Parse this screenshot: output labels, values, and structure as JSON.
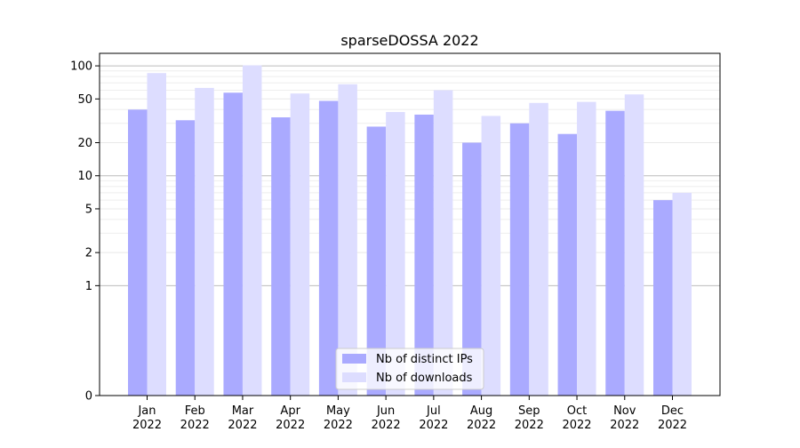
{
  "chart_data": {
    "type": "bar",
    "title": "sparseDOSSA 2022",
    "xlabel": "",
    "ylabel": "",
    "y_scale": "symlog",
    "ylim": [
      0,
      130
    ],
    "y_ticks": [
      0,
      1,
      2,
      5,
      10,
      20,
      50,
      100
    ],
    "y_tick_labels": [
      "0",
      "1",
      "2",
      "5",
      "10",
      "20",
      "50",
      "100"
    ],
    "categories": [
      {
        "month": "Jan",
        "year": "2022"
      },
      {
        "month": "Feb",
        "year": "2022"
      },
      {
        "month": "Mar",
        "year": "2022"
      },
      {
        "month": "Apr",
        "year": "2022"
      },
      {
        "month": "May",
        "year": "2022"
      },
      {
        "month": "Jun",
        "year": "2022"
      },
      {
        "month": "Jul",
        "year": "2022"
      },
      {
        "month": "Aug",
        "year": "2022"
      },
      {
        "month": "Sep",
        "year": "2022"
      },
      {
        "month": "Oct",
        "year": "2022"
      },
      {
        "month": "Nov",
        "year": "2022"
      },
      {
        "month": "Dec",
        "year": "2022"
      }
    ],
    "series": [
      {
        "name": "Nb of distinct IPs",
        "color": "#aaaaff",
        "values": [
          40,
          32,
          57,
          34,
          48,
          28,
          36,
          20,
          30,
          24,
          39,
          6
        ]
      },
      {
        "name": "Nb of downloads",
        "color": "#ddddff",
        "values": [
          86,
          63,
          101,
          56,
          68,
          38,
          60,
          35,
          46,
          47,
          55,
          7
        ]
      }
    ],
    "grid": true,
    "legend_position": "bottom-center"
  }
}
